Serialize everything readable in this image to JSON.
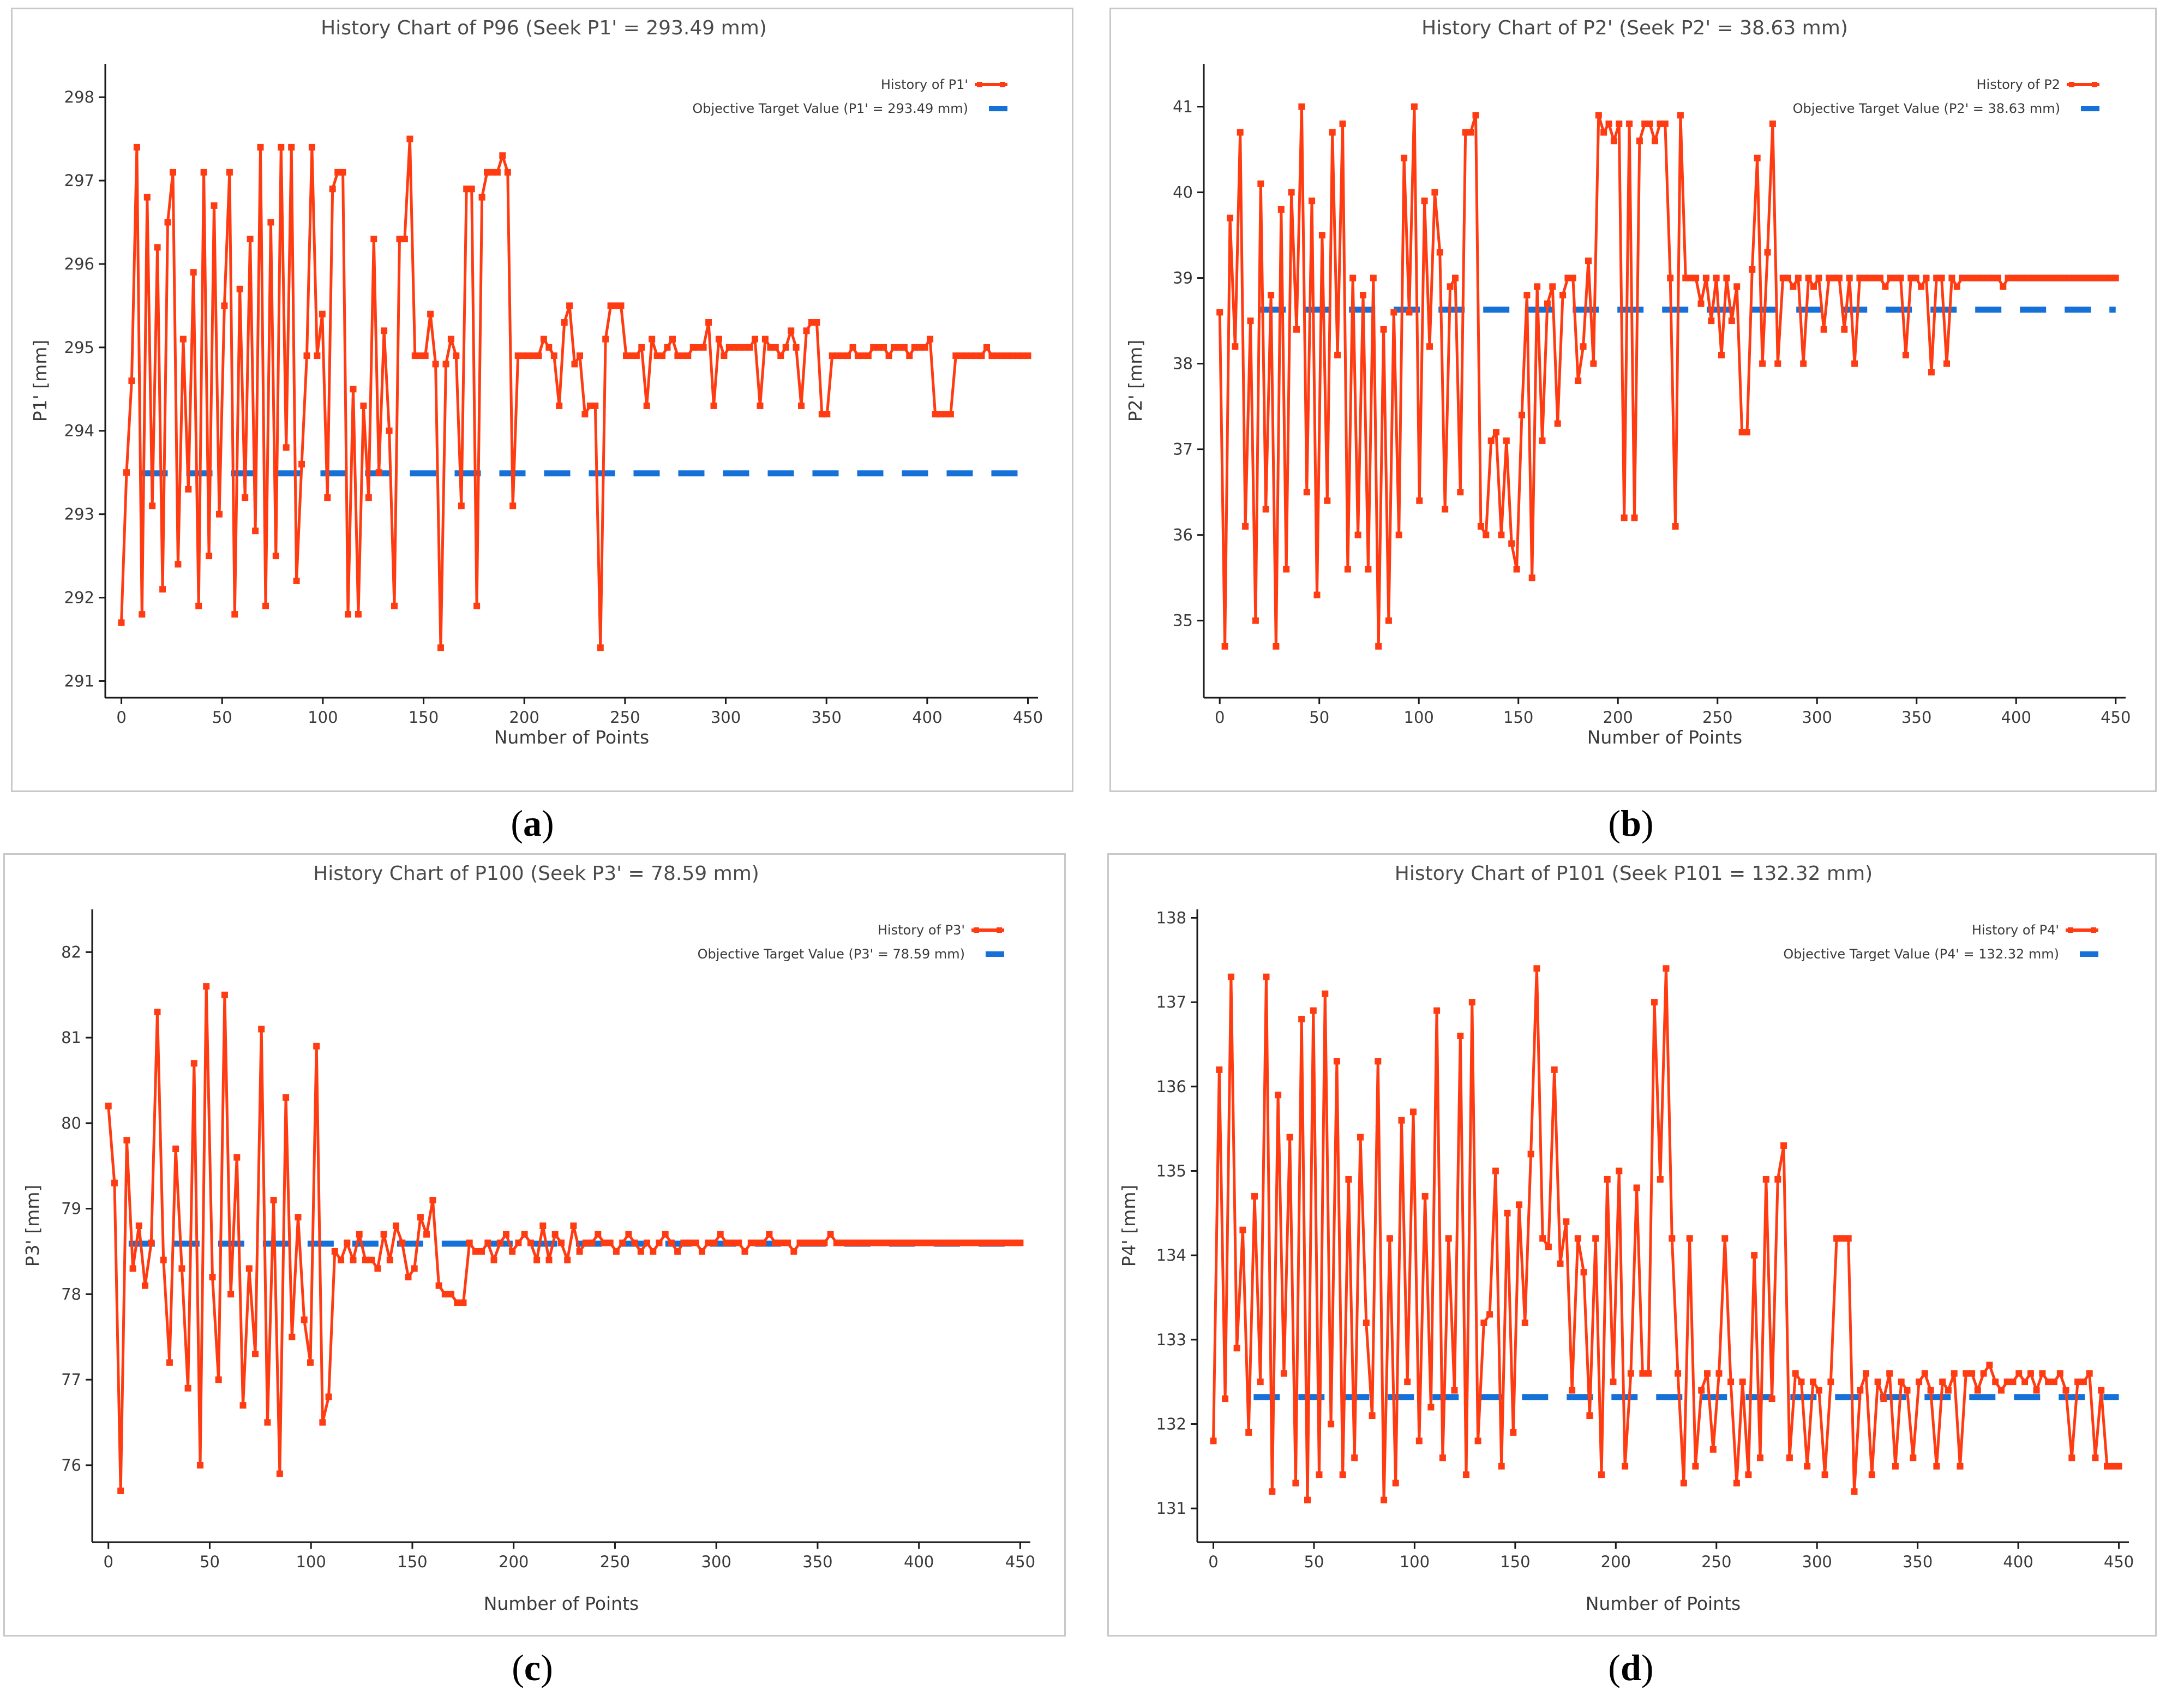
{
  "colors": {
    "history": "#ff3b12",
    "target": "#1570d8"
  },
  "chart_data": [
    {
      "type": "line",
      "caption": "a",
      "title": "History Chart of P96 (Seek P1' = 293.49 mm)",
      "xlabel": "Number of Points",
      "ylabel": "P1'  [mm]",
      "xlim": [
        -8,
        455
      ],
      "ylim": [
        290.8,
        298.4
      ],
      "xticks": [
        0,
        50,
        100,
        150,
        200,
        250,
        300,
        350,
        400,
        450
      ],
      "yticks": [
        291,
        292,
        293,
        294,
        295,
        296,
        297,
        298
      ],
      "legend": {
        "history": "History of P1'",
        "target": "Objective Target Value (P1' = 293.49 mm)",
        "position": "top-right"
      },
      "target": {
        "value": 293.49,
        "x_start": 10,
        "x_end": 450
      },
      "series": [
        {
          "name": "History of P1'",
          "x_end": 450,
          "values": [
            291.7,
            293.5,
            294.6,
            297.4,
            291.8,
            296.8,
            293.1,
            296.2,
            292.1,
            296.5,
            297.1,
            292.4,
            295.1,
            293.3,
            295.9,
            291.9,
            297.1,
            292.5,
            296.7,
            293.0,
            295.5,
            297.1,
            291.8,
            295.7,
            293.2,
            296.3,
            292.8,
            297.4,
            291.9,
            296.5,
            292.5,
            297.4,
            293.8,
            297.4,
            292.2,
            293.6,
            294.9,
            297.4,
            294.9,
            295.4,
            293.2,
            296.9,
            297.1,
            297.1,
            291.8,
            294.5,
            291.8,
            294.3,
            293.2,
            296.3,
            293.5,
            295.2,
            294.0,
            291.9,
            296.3,
            296.3,
            297.5,
            294.9,
            294.9,
            294.9,
            295.4,
            294.8,
            291.4,
            294.8,
            295.1,
            294.9,
            293.1,
            296.9,
            296.9,
            291.9,
            296.8,
            297.1,
            297.1,
            297.1,
            297.3,
            297.1,
            293.1,
            294.9,
            294.9,
            294.9,
            294.9,
            294.9,
            295.1,
            295.0,
            294.9,
            294.3,
            295.3,
            295.5,
            294.8,
            294.9,
            294.2,
            294.3,
            294.3,
            291.4,
            295.1,
            295.5,
            295.5,
            295.5,
            294.9,
            294.9,
            294.9,
            295.0,
            294.3,
            295.1,
            294.9,
            294.9,
            295.0,
            295.1,
            294.9,
            294.9,
            294.9,
            295.0,
            295.0,
            295.0,
            295.3,
            294.3,
            295.1,
            294.9,
            295.0,
            295.0,
            295.0,
            295.0,
            295.0,
            295.1,
            294.3,
            295.1,
            295.0,
            295.0,
            294.9,
            295.0,
            295.2,
            295.0,
            294.3,
            295.2,
            295.3,
            295.3,
            294.2,
            294.2,
            294.9,
            294.9,
            294.9,
            294.9,
            295.0,
            294.9,
            294.9,
            294.9,
            295.0,
            295.0,
            295.0,
            294.9,
            295.0,
            295.0,
            295.0,
            294.9,
            295.0,
            295.0,
            295.0,
            295.1,
            294.2,
            294.2,
            294.2,
            294.2,
            294.9,
            294.9,
            294.9,
            294.9,
            294.9,
            294.9,
            295.0,
            294.9,
            294.9,
            294.9,
            294.9,
            294.9,
            294.9,
            294.9,
            294.9
          ]
        }
      ]
    },
    {
      "type": "line",
      "caption": "b",
      "title": "History Chart of P2' (Seek P2' = 38.63 mm)",
      "xlabel": "Number of Points",
      "ylabel": "P2'  [mm]",
      "xlim": [
        -8,
        455
      ],
      "ylim": [
        34.1,
        41.5
      ],
      "xticks": [
        0,
        50,
        100,
        150,
        200,
        250,
        300,
        350,
        400,
        450
      ],
      "yticks": [
        35,
        36,
        37,
        38,
        39,
        40,
        41
      ],
      "legend": {
        "history": "History of P2",
        "target": "Objective Target Value (P2' = 38.63 mm)",
        "position": "top-right"
      },
      "target": {
        "value": 38.63,
        "x_start": 20,
        "x_end": 450
      },
      "series": [
        {
          "name": "History of P2'",
          "x_end": 450,
          "values": [
            38.6,
            34.7,
            39.7,
            38.2,
            40.7,
            36.1,
            38.5,
            35.0,
            40.1,
            36.3,
            38.8,
            34.7,
            39.8,
            35.6,
            40.0,
            38.4,
            41.0,
            36.5,
            39.9,
            35.3,
            39.5,
            36.4,
            40.7,
            38.1,
            40.8,
            35.6,
            39.0,
            36.0,
            38.8,
            35.6,
            39.0,
            34.7,
            38.4,
            35.0,
            38.6,
            36.0,
            40.4,
            38.6,
            41.0,
            36.4,
            39.9,
            38.2,
            40.0,
            39.3,
            36.3,
            38.9,
            39.0,
            36.5,
            40.7,
            40.7,
            40.9,
            36.1,
            36.0,
            37.1,
            37.2,
            36.0,
            37.1,
            35.9,
            35.6,
            37.4,
            38.8,
            35.5,
            38.9,
            37.1,
            38.7,
            38.9,
            37.3,
            38.8,
            39.0,
            39.0,
            37.8,
            38.2,
            39.2,
            38.0,
            40.9,
            40.7,
            40.8,
            40.6,
            40.8,
            36.2,
            40.8,
            36.2,
            40.6,
            40.8,
            40.8,
            40.6,
            40.8,
            40.8,
            39.0,
            36.1,
            40.9,
            39.0,
            39.0,
            39.0,
            38.7,
            39.0,
            38.5,
            39.0,
            38.1,
            39.0,
            38.5,
            38.9,
            37.2,
            37.2,
            39.1,
            40.4,
            38.0,
            39.3,
            40.8,
            38.0,
            39.0,
            39.0,
            38.9,
            39.0,
            38.0,
            39.0,
            38.9,
            39.0,
            38.4,
            39.0,
            39.0,
            39.0,
            38.4,
            39.0,
            38.0,
            39.0,
            39.0,
            39.0,
            39.0,
            39.0,
            38.9,
            39.0,
            39.0,
            39.0,
            38.1,
            39.0,
            39.0,
            38.9,
            39.0,
            37.9,
            39.0,
            39.0,
            38.0,
            39.0,
            38.9,
            39.0,
            39.0,
            39.0,
            39.0,
            39.0,
            39.0,
            39.0,
            39.0,
            38.9,
            39.0,
            39.0,
            39.0,
            39.0,
            39.0,
            39.0,
            39.0,
            39.0,
            39.0,
            39.0,
            39.0,
            39.0,
            39.0,
            39.0,
            39.0,
            39.0,
            39.0,
            39.0,
            39.0,
            39.0,
            39.0,
            39.0
          ]
        }
      ]
    },
    {
      "type": "line",
      "caption": "c",
      "title": "History Chart of P100 (Seek P3' = 78.59 mm)",
      "xlabel": "Number of Points",
      "ylabel": "P3'  [mm]",
      "xlim": [
        -8,
        455
      ],
      "ylim": [
        75.1,
        82.5
      ],
      "xticks": [
        0,
        50,
        100,
        150,
        200,
        250,
        300,
        350,
        400,
        450
      ],
      "yticks": [
        76,
        77,
        78,
        79,
        80,
        81,
        82
      ],
      "legend": {
        "history": "History of P3'",
        "target": "Objective Target Value (P3' = 78.59 mm)",
        "position": "top-right"
      },
      "target": {
        "value": 78.59,
        "x_start": 10,
        "x_end": 450
      },
      "series": [
        {
          "name": "History of P3'",
          "x_end": 450,
          "values": [
            80.2,
            79.3,
            75.7,
            79.8,
            78.3,
            78.8,
            78.1,
            78.6,
            81.3,
            78.4,
            77.2,
            79.7,
            78.3,
            76.9,
            80.7,
            76.0,
            81.6,
            78.2,
            77.0,
            81.5,
            78.0,
            79.6,
            76.7,
            78.3,
            77.3,
            81.1,
            76.5,
            79.1,
            75.9,
            80.3,
            77.5,
            78.9,
            77.7,
            77.2,
            80.9,
            76.5,
            76.8,
            78.5,
            78.4,
            78.6,
            78.4,
            78.7,
            78.4,
            78.4,
            78.3,
            78.7,
            78.4,
            78.8,
            78.6,
            78.2,
            78.3,
            78.9,
            78.7,
            79.1,
            78.1,
            78.0,
            78.0,
            77.9,
            77.9,
            78.6,
            78.5,
            78.5,
            78.6,
            78.4,
            78.6,
            78.7,
            78.5,
            78.6,
            78.7,
            78.6,
            78.4,
            78.8,
            78.4,
            78.7,
            78.6,
            78.4,
            78.8,
            78.5,
            78.6,
            78.6,
            78.7,
            78.6,
            78.6,
            78.5,
            78.6,
            78.7,
            78.6,
            78.5,
            78.6,
            78.5,
            78.6,
            78.7,
            78.6,
            78.5,
            78.6,
            78.6,
            78.6,
            78.5,
            78.6,
            78.6,
            78.7,
            78.6,
            78.6,
            78.6,
            78.5,
            78.6,
            78.6,
            78.6,
            78.7,
            78.6,
            78.6,
            78.6,
            78.5,
            78.6,
            78.6,
            78.6,
            78.6,
            78.6,
            78.7,
            78.6,
            78.6,
            78.6,
            78.6,
            78.6,
            78.6,
            78.6,
            78.6,
            78.6,
            78.6,
            78.6,
            78.6,
            78.6,
            78.6,
            78.6,
            78.6,
            78.6,
            78.6,
            78.6,
            78.6,
            78.6,
            78.6,
            78.6,
            78.6,
            78.6,
            78.6,
            78.6,
            78.6,
            78.6,
            78.6,
            78.6
          ]
        }
      ]
    },
    {
      "type": "line",
      "caption": "d",
      "title": "History Chart of P101 (Seek P101 = 132.32 mm)",
      "xlabel": "Number of Points",
      "ylabel": "P4'  [mm]",
      "xlim": [
        -8,
        455
      ],
      "ylim": [
        130.6,
        138.1
      ],
      "xticks": [
        0,
        50,
        100,
        150,
        200,
        250,
        300,
        350,
        400,
        450
      ],
      "yticks": [
        131,
        132,
        133,
        134,
        135,
        136,
        137,
        138
      ],
      "legend": {
        "history": "History of P4'",
        "target": "Objective Target Value (P4' = 132.32 mm)",
        "position": "top-right"
      },
      "target": {
        "value": 132.32,
        "x_start": 20,
        "x_end": 450
      },
      "series": [
        {
          "name": "History of P4'",
          "x_end": 450,
          "values": [
            131.8,
            136.2,
            132.3,
            137.3,
            132.9,
            134.3,
            131.9,
            134.7,
            132.5,
            137.3,
            131.2,
            135.9,
            132.6,
            135.4,
            131.3,
            136.8,
            131.1,
            136.9,
            131.4,
            137.1,
            132.0,
            136.3,
            131.4,
            134.9,
            131.6,
            135.4,
            133.2,
            132.1,
            136.3,
            131.1,
            134.2,
            131.3,
            135.6,
            132.5,
            135.7,
            131.8,
            134.7,
            132.2,
            136.9,
            131.6,
            134.2,
            132.4,
            136.6,
            131.4,
            137.0,
            131.8,
            133.2,
            133.3,
            135.0,
            131.5,
            134.5,
            131.9,
            134.6,
            133.2,
            135.2,
            137.4,
            134.2,
            134.1,
            136.2,
            133.9,
            134.4,
            132.4,
            134.2,
            133.8,
            132.1,
            134.2,
            131.4,
            134.9,
            132.5,
            135.0,
            131.5,
            132.6,
            134.8,
            132.6,
            132.6,
            137.0,
            134.9,
            137.4,
            134.2,
            132.6,
            131.3,
            134.2,
            131.5,
            132.4,
            132.6,
            131.7,
            132.6,
            134.2,
            132.5,
            131.3,
            132.5,
            131.4,
            134.0,
            131.6,
            134.9,
            132.3,
            134.9,
            135.3,
            131.6,
            132.6,
            132.5,
            131.5,
            132.5,
            132.4,
            131.4,
            132.5,
            134.2,
            134.2,
            134.2,
            131.2,
            132.4,
            132.6,
            131.4,
            132.5,
            132.3,
            132.6,
            131.5,
            132.5,
            132.4,
            131.6,
            132.5,
            132.6,
            132.4,
            131.5,
            132.5,
            132.4,
            132.6,
            131.5,
            132.6,
            132.6,
            132.4,
            132.6,
            132.7,
            132.5,
            132.4,
            132.5,
            132.5,
            132.6,
            132.5,
            132.6,
            132.4,
            132.6,
            132.5,
            132.5,
            132.6,
            132.4,
            131.6,
            132.5,
            132.5,
            132.6,
            131.6,
            132.4,
            131.5,
            131.5,
            131.5
          ]
        }
      ]
    }
  ]
}
